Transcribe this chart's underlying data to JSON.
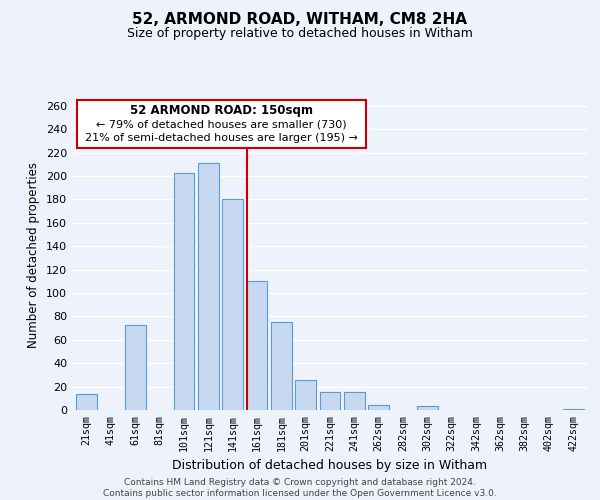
{
  "title": "52, ARMOND ROAD, WITHAM, CM8 2HA",
  "subtitle": "Size of property relative to detached houses in Witham",
  "xlabel": "Distribution of detached houses by size in Witham",
  "ylabel": "Number of detached properties",
  "bar_labels": [
    "21sqm",
    "41sqm",
    "61sqm",
    "81sqm",
    "101sqm",
    "121sqm",
    "141sqm",
    "161sqm",
    "181sqm",
    "201sqm",
    "221sqm",
    "241sqm",
    "262sqm",
    "282sqm",
    "302sqm",
    "322sqm",
    "342sqm",
    "362sqm",
    "382sqm",
    "402sqm",
    "422sqm"
  ],
  "bar_values": [
    14,
    0,
    73,
    0,
    203,
    211,
    180,
    110,
    75,
    26,
    15,
    15,
    4,
    0,
    3,
    0,
    0,
    0,
    0,
    0,
    1
  ],
  "bar_color": "#c6d9f0",
  "bar_edge_color": "#5b9bd5",
  "vline_color": "#cc0000",
  "annotation_title": "52 ARMOND ROAD: 150sqm",
  "annotation_line1": "← 79% of detached houses are smaller (730)",
  "annotation_line2": "21% of semi-detached houses are larger (195) →",
  "annotation_box_color": "#ffffff",
  "annotation_box_edge": "#cc0000",
  "ylim": [
    0,
    265
  ],
  "yticks": [
    0,
    20,
    40,
    60,
    80,
    100,
    120,
    140,
    160,
    180,
    200,
    220,
    240,
    260
  ],
  "footer_line1": "Contains HM Land Registry data © Crown copyright and database right 2024.",
  "footer_line2": "Contains public sector information licensed under the Open Government Licence v3.0.",
  "background_color": "#eef2fb",
  "grid_color": "#ffffff"
}
